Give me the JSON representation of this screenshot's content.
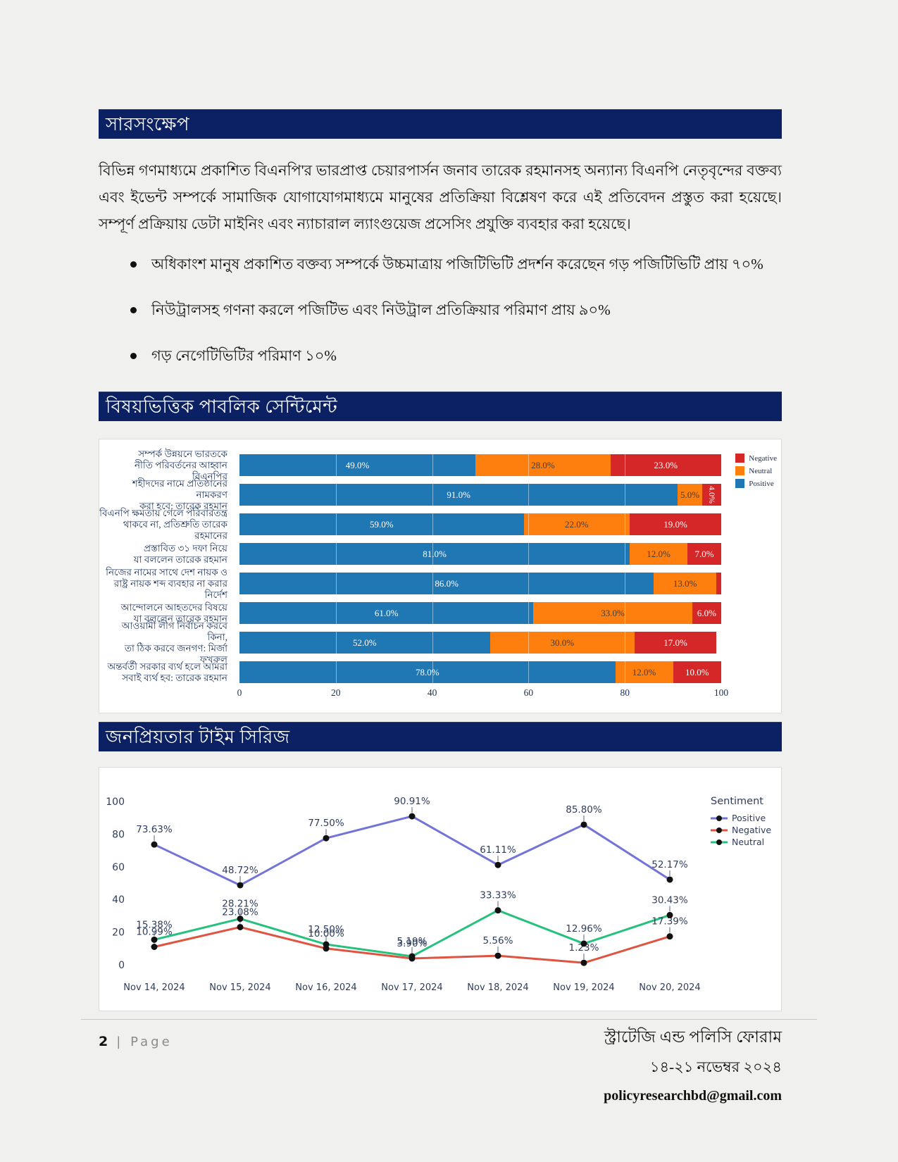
{
  "sections": {
    "summary": {
      "title": "সারসংক্ষেপ",
      "paragraph": "বিভিন্ন গণমাধ্যমে প্রকাশিত বিএনপি'র ভারপ্রাপ্ত চেয়ারপার্সন জনাব তারেক রহমানসহ অন্যান্য বিএনপি নেতৃবৃন্দের বক্তব্য এবং ইভেন্ট সম্পর্কে সামাজিক যোগাযোগমাধ্যমে মানুষের প্রতিক্রিয়া বিশ্লেষণ করে এই প্রতিবেদন প্রস্তুত করা হয়েছে। সম্পূর্ণ প্রক্রিয়ায় ডেটা মাইনিং এবং ন্যাচারাল ল্যাংগুয়েজ প্রসেসিং প্রযুক্তি ব্যবহার করা হয়েছে।",
      "bullets": [
        "অধিকাংশ মানুষ প্রকাশিত বক্তব্য সম্পর্কে উচ্চমাত্রায় পজিটিভিটি প্রদর্শন করেছেন গড় পজিটিভিটি প্রায় ৭০%",
        "নিউট্রালসহ গণনা করলে পজিটিভ এবং নিউট্রাল প্রতিক্রিয়ার পরিমাণ প্রায় ৯০%",
        "গড় নেগেটিভিটির পরিমাণ ১০%"
      ]
    },
    "topic_sentiment": {
      "title": "বিষয়ভিত্তিক পাবলিক সেন্টিমেন্ট"
    },
    "time_series": {
      "title": "জনপ্রিয়তার টাইম সিরিজ"
    }
  },
  "chart_data": [
    {
      "type": "bar",
      "orientation": "horizontal",
      "stacked": true,
      "xlim": [
        0,
        100
      ],
      "x_ticks": [
        0,
        20,
        40,
        60,
        80,
        100
      ],
      "grid": true,
      "legend_position": "top-right",
      "legend": [
        {
          "label": "Negative",
          "color": "#d62728"
        },
        {
          "label": "Neutral",
          "color": "#ff7f0e"
        },
        {
          "label": "Positive",
          "color": "#1f77b4"
        }
      ],
      "categories": [
        [
          "সম্পর্ক উন্নয়নে ভারতকে",
          "নীতি পরিবর্তনের আহ্বান বিএনপির"
        ],
        [
          "শহীদদের নামে প্রতিষ্ঠানের নামকরণ",
          "করা হবে: তারেক রহমান"
        ],
        [
          "বিএনপি ক্ষমতায় গেলে পরিবারতন্ত্র",
          "থাকবে না, প্রতিশ্রুতি তারেক রহমানের"
        ],
        [
          "প্রস্তাবিত ৩১ দফা নিয়ে",
          "যা বললেন তারেক রহমান"
        ],
        [
          "নিজের নামের সাথে দেশ নায়ক ও",
          "রাষ্ট্র নায়ক শব্দ ব্যবহার না করার নির্দেশ"
        ],
        [
          "আন্দোলনে আহতদের বিষয়ে",
          "যা বললেন তারেক রহমান"
        ],
        [
          "আওয়ামী লীগ নির্বাচন করবে কিনা,",
          "তা ঠিক করবে জনগণ: মির্জা ফখরুল"
        ],
        [
          "অন্তর্বর্তী সরকার ব্যর্থ হলে আমরা",
          "সবাই ব্যর্থ হব: তারেক রহমান"
        ]
      ],
      "series": [
        {
          "name": "Positive",
          "color": "#1f77b4",
          "values": [
            49.0,
            91.0,
            59.0,
            81.0,
            86.0,
            61.0,
            52.0,
            78.0
          ]
        },
        {
          "name": "Neutral",
          "color": "#ff7f0e",
          "values": [
            28.0,
            5.0,
            22.0,
            12.0,
            13.0,
            33.0,
            30.0,
            12.0
          ]
        },
        {
          "name": "Negative",
          "color": "#d62728",
          "values": [
            23.0,
            4.0,
            19.0,
            7.0,
            1.0,
            6.0,
            17.0,
            10.0
          ]
        }
      ]
    },
    {
      "type": "line",
      "ylim": [
        0,
        100
      ],
      "y_ticks": [
        0,
        20,
        40,
        60,
        80,
        100
      ],
      "legend_title": "Sentiment",
      "legend_position": "top-right",
      "x": [
        "Nov 14, 2024",
        "Nov 15, 2024",
        "Nov 16, 2024",
        "Nov 17, 2024",
        "Nov 18, 2024",
        "Nov 19, 2024",
        "Nov 20, 2024"
      ],
      "series": [
        {
          "name": "Positive",
          "color": "#7374d8",
          "values": [
            73.63,
            48.72,
            77.5,
            90.91,
            61.11,
            85.8,
            52.17
          ]
        },
        {
          "name": "Negative",
          "color": "#df5440",
          "values": [
            10.99,
            23.08,
            10.0,
            3.9,
            5.56,
            1.23,
            17.39
          ]
        },
        {
          "name": "Neutral",
          "color": "#25c17d",
          "values": [
            15.38,
            28.21,
            12.5,
            5.19,
            33.33,
            12.96,
            30.43
          ]
        }
      ],
      "marker_color": "#111111",
      "label_color": "#2f3d5c"
    }
  ],
  "footer": {
    "page_number": "2",
    "page_word": "| Page",
    "org": "স্ট্রাটেজি এন্ড পলিসি ফোরাম",
    "date_range": "১৪-২১ নভেম্বর ২০২৪",
    "email": "policyresearchbd@gmail.com"
  }
}
